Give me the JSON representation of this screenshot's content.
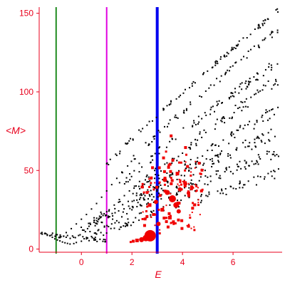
{
  "chart_data": {
    "type": "scatter",
    "title": "",
    "xlabel": "E",
    "ylabel": "<M>",
    "xlim": [
      -1.67,
      7.83
    ],
    "ylim": [
      -2,
      153
    ],
    "x_ticks": [
      0,
      2,
      4,
      6
    ],
    "x_tick_labels": [
      "0",
      "2",
      "4",
      "6"
    ],
    "y_ticks": [
      0,
      50,
      100,
      150
    ],
    "y_tick_labels": [
      "0",
      "50",
      "100",
      "150"
    ],
    "grid": false,
    "legend": "none",
    "axis_color": "#e8001c",
    "vertical_lines": [
      {
        "x": -1.0,
        "color": "#1f8a1f",
        "weight": "thin"
      },
      {
        "x": 1.0,
        "color": "#e000e0",
        "weight": "thin"
      },
      {
        "x": 3.0,
        "color": "#0000f0",
        "weight": "thick"
      }
    ],
    "bands": [
      {
        "name": "upper",
        "x_start": 1.0,
        "x_end": 7.8,
        "y_start": 53,
        "y_end": 152,
        "count": 95,
        "spread": 1.5
      },
      {
        "name": "upper-2",
        "x_start": 1.6,
        "x_end": 7.8,
        "y_start": 50,
        "y_end": 140,
        "count": 70,
        "spread": 2
      },
      {
        "name": "mid-1",
        "x_start": 1.5,
        "x_end": 7.8,
        "y_start": 40,
        "y_end": 120,
        "count": 90,
        "spread": 3
      },
      {
        "name": "mid-2",
        "x_start": 2.0,
        "x_end": 7.8,
        "y_start": 35,
        "y_end": 108,
        "count": 80,
        "spread": 3.5
      },
      {
        "name": "mid-3",
        "x_start": 2.0,
        "x_end": 7.8,
        "y_start": 28,
        "y_end": 90,
        "count": 90,
        "spread": 4
      },
      {
        "name": "mid-4",
        "x_start": 0.5,
        "x_end": 7.8,
        "y_start": 18,
        "y_end": 75,
        "count": 110,
        "spread": 4
      },
      {
        "name": "lower-1",
        "x_start": -0.2,
        "x_end": 7.8,
        "y_start": 10,
        "y_end": 62,
        "count": 110,
        "spread": 3
      },
      {
        "name": "lower-2",
        "x_start": 0.3,
        "x_end": 7.8,
        "y_start": 8,
        "y_end": 48,
        "count": 95,
        "spread": 3
      },
      {
        "name": "bottom",
        "x_start": -1.6,
        "x_end": 1.0,
        "y_start": 10,
        "y_end": 5,
        "count": 45,
        "spread": 1.2
      }
    ],
    "black_points": [
      [
        -1.55,
        9.5
      ],
      [
        -1.45,
        9.8
      ],
      [
        -1.35,
        9.2
      ],
      [
        -1.25,
        8.5
      ],
      [
        -1.15,
        7.5
      ],
      [
        -1.05,
        6.5
      ],
      [
        -0.95,
        5.8
      ],
      [
        -0.85,
        5.2
      ],
      [
        -0.75,
        4.5
      ],
      [
        -0.65,
        4.0
      ],
      [
        -0.55,
        3.6
      ],
      [
        -0.45,
        3.2
      ],
      [
        -0.3,
        3.5
      ],
      [
        -0.2,
        4.2
      ],
      [
        0.0,
        5.0
      ],
      [
        0.2,
        6.5
      ],
      [
        0.4,
        8.0
      ],
      [
        0.6,
        9.5
      ],
      [
        -0.6,
        10.5
      ],
      [
        -0.4,
        13.0
      ],
      [
        -0.2,
        16.0
      ],
      [
        0.0,
        19.0
      ],
      [
        0.2,
        22.0
      ],
      [
        0.4,
        25.5
      ],
      [
        0.6,
        29.0
      ],
      [
        0.8,
        33.0
      ],
      [
        1.0,
        37.0
      ],
      [
        1.2,
        41.0
      ],
      [
        1.4,
        45.0
      ],
      [
        1.6,
        49.0
      ],
      [
        0.1,
        12.0
      ],
      [
        0.3,
        14.5
      ],
      [
        0.5,
        17.0
      ],
      [
        0.7,
        19.5
      ],
      [
        0.9,
        22.5
      ],
      [
        1.1,
        25.0
      ],
      [
        1.3,
        28.0
      ],
      [
        1.5,
        31.5
      ],
      [
        1.7,
        34.0
      ],
      [
        1.9,
        37.0
      ],
      [
        2.1,
        40.0
      ],
      [
        2.3,
        43.0
      ],
      [
        2.6,
        47.0
      ],
      [
        2.9,
        50.0
      ],
      [
        3.3,
        54.0
      ],
      [
        3.6,
        57.5
      ],
      [
        4.0,
        61.0
      ],
      [
        4.3,
        64.5
      ],
      [
        1.2,
        16.0
      ],
      [
        1.4,
        18.0
      ],
      [
        1.6,
        20.5
      ],
      [
        1.8,
        22.5
      ],
      [
        2.0,
        25.0
      ],
      [
        2.2,
        27.0
      ],
      [
        3.5,
        28.0
      ],
      [
        3.8,
        31.0
      ],
      [
        4.1,
        34.0
      ],
      [
        4.5,
        37.0
      ],
      [
        5.0,
        41.0
      ],
      [
        5.5,
        45.0
      ],
      [
        6.0,
        48.0
      ],
      [
        6.5,
        51.0
      ],
      [
        7.0,
        54.0
      ],
      [
        7.5,
        57.0
      ],
      [
        7.8,
        59.0
      ]
    ],
    "red_points": [
      {
        "x": 2.72,
        "y": 8.5,
        "size": 16
      },
      {
        "x": 2.55,
        "y": 7.0,
        "size": 9
      },
      {
        "x": 2.38,
        "y": 6.0,
        "size": 7
      },
      {
        "x": 2.2,
        "y": 5.5,
        "size": 5
      },
      {
        "x": 2.05,
        "y": 5.0,
        "size": 4
      },
      {
        "x": 1.95,
        "y": 4.5,
        "size": 3
      },
      {
        "x": 3.05,
        "y": 16.0,
        "size": 6
      },
      {
        "x": 3.6,
        "y": 32.0,
        "size": 10
      },
      {
        "x": 3.75,
        "y": 28.0,
        "size": 8
      },
      {
        "x": 3.4,
        "y": 36.0,
        "size": 7
      },
      {
        "x": 3.9,
        "y": 38.0,
        "size": 6
      },
      {
        "x": 2.95,
        "y": 30.0,
        "size": 6
      },
      {
        "x": 2.7,
        "y": 28.0,
        "size": 5
      },
      {
        "x": 3.2,
        "y": 25.0,
        "size": 5
      },
      {
        "x": 3.55,
        "y": 72.0,
        "size": 4
      },
      {
        "x": 4.1,
        "y": 42.0,
        "size": 5
      },
      {
        "x": 4.25,
        "y": 34.0,
        "size": 4
      },
      {
        "x": 3.85,
        "y": 24.0,
        "size": 6
      },
      {
        "x": 3.5,
        "y": 20.0,
        "size": 5
      },
      {
        "x": 3.3,
        "y": 44.0,
        "size": 6
      },
      {
        "x": 3.8,
        "y": 48.0,
        "size": 5
      },
      {
        "x": 3.45,
        "y": 52.0,
        "size": 4
      },
      {
        "x": 3.25,
        "y": 58.0,
        "size": 4
      },
      {
        "x": 3.35,
        "y": 62.0,
        "size": 3
      },
      {
        "x": 2.6,
        "y": 36.0,
        "size": 4
      },
      {
        "x": 2.75,
        "y": 42.0,
        "size": 3
      },
      {
        "x": 2.85,
        "y": 22.0,
        "size": 4
      },
      {
        "x": 4.4,
        "y": 26.0,
        "size": 4
      },
      {
        "x": 4.55,
        "y": 40.0,
        "size": 3
      },
      {
        "x": 4.7,
        "y": 48.0,
        "size": 3
      },
      {
        "x": 3.95,
        "y": 55.0,
        "size": 3
      },
      {
        "x": 4.15,
        "y": 60.0,
        "size": 3
      },
      {
        "x": 2.5,
        "y": 15.0,
        "size": 4
      },
      {
        "x": 3.1,
        "y": 10.0,
        "size": 3
      },
      {
        "x": 3.65,
        "y": 16.0,
        "size": 3
      },
      {
        "x": 4.3,
        "y": 20.0,
        "size": 3
      }
    ],
    "red_scatter": {
      "x_start": 2.4,
      "x_end": 4.8,
      "y_start": 12,
      "y_end": 66,
      "count": 110
    }
  }
}
